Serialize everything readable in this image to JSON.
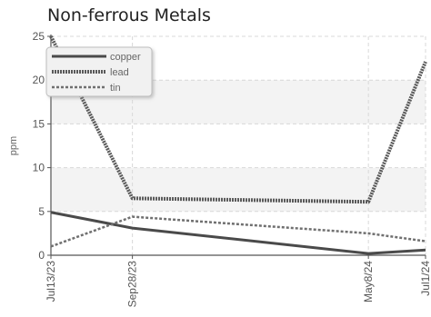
{
  "chart_data": {
    "type": "line",
    "title": "Non-ferrous Metals",
    "xlabel": "",
    "ylabel": "ppm",
    "categories": [
      "Jul13/23",
      "Sep28/23",
      "May8/24",
      "Jul1/24"
    ],
    "x_dates": [
      "2023-07-13",
      "2023-09-28",
      "2024-05-08",
      "2024-07-01"
    ],
    "ylim": [
      0,
      25
    ],
    "yticks": [
      0,
      5,
      10,
      15,
      20,
      25
    ],
    "grid": true,
    "legend": "top-left",
    "series": [
      {
        "name": "copper",
        "values": [
          4.9,
          3.1,
          0.2,
          0.6
        ],
        "color": "#4a4a4a",
        "style": "solid"
      },
      {
        "name": "lead",
        "values": [
          25,
          6.5,
          6.1,
          22.1
        ],
        "color": "#5a5a5a",
        "style": "dotted"
      },
      {
        "name": "tin",
        "values": [
          1.0,
          4.4,
          2.5,
          1.6
        ],
        "color": "#707070",
        "style": "dashed"
      }
    ]
  }
}
